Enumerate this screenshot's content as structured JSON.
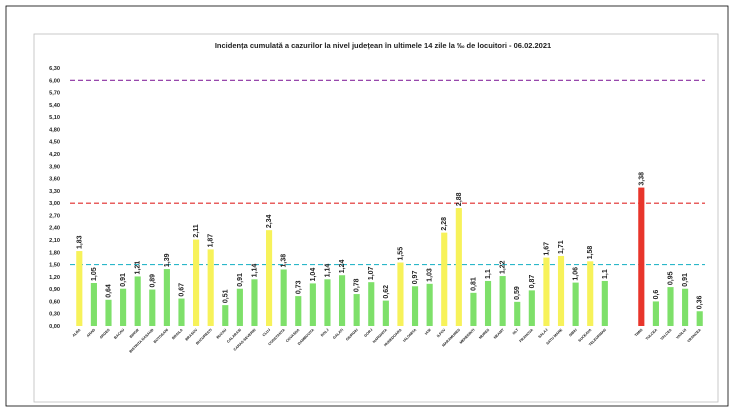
{
  "chart_data": {
    "type": "bar",
    "title": "Incidența cumulată a cazurilor la nivel județean în ultimele 14 zile la ‰ de locuitori - 06.02.2021",
    "xlabel": "",
    "ylabel": "",
    "ylim": [
      0,
      6.3
    ],
    "yticks": [
      "0,00",
      "0,30",
      "0,60",
      "0,90",
      "1,20",
      "1,50",
      "1,80",
      "2,10",
      "2,40",
      "2,70",
      "3,00",
      "3,30",
      "3,60",
      "3,90",
      "4,20",
      "4,50",
      "4,80",
      "5,10",
      "5,40",
      "5,70",
      "6,00",
      "6,30"
    ],
    "grid": false,
    "categories": [
      "ALBA",
      "ARAD",
      "ARGES",
      "BACAU",
      "BIHOR",
      "BISTRITA NASAUD",
      "BOTOSANI",
      "BRAILA",
      "BRASOV",
      "BUCURESTI",
      "BUZAU",
      "CALARASI",
      "CARAS-SEVERIN",
      "CLUJ",
      "CONSTANTA",
      "COVASNA",
      "DAMBOVITA",
      "DOLJ",
      "GALATI",
      "GIURGIU",
      "GORJ",
      "HARGHITA",
      "HUNEDOARA",
      "IALOMITA",
      "IASI",
      "ILFOV",
      "MARAMURES",
      "MEHEDINTI",
      "MURES",
      "NEAMT",
      "OLT",
      "PRAHOVA",
      "SALAJ",
      "SATU MARE",
      "SIBIU",
      "SUCEAVA",
      "TELEORMAN",
      "TIMIS",
      "TULCEA",
      "VALCEA",
      "VASLUI",
      "VRANCEA"
    ],
    "values": [
      1.83,
      1.05,
      0.64,
      0.91,
      1.21,
      0.89,
      1.39,
      0.67,
      2.11,
      1.87,
      0.51,
      0.91,
      1.14,
      2.34,
      1.38,
      0.73,
      1.04,
      1.14,
      1.24,
      0.78,
      1.07,
      0.62,
      1.55,
      0.97,
      1.03,
      2.28,
      2.88,
      0.81,
      1.1,
      1.22,
      0.59,
      0.87,
      1.67,
      1.71,
      1.06,
      1.58,
      1.1,
      3.38,
      0.6,
      0.95,
      0.91,
      0.36
    ],
    "value_labels": [
      "1,83",
      "1,05",
      "0,64",
      "0,91",
      "1,21",
      "0,89",
      "1,39",
      "0,67",
      "2,11",
      "1,87",
      "0,51",
      "0,91",
      "1,14",
      "2,34",
      "1,38",
      "0,73",
      "1,04",
      "1,14",
      "1,24",
      "0,78",
      "1,07",
      "0,62",
      "1,55",
      "0,97",
      "1,03",
      "2,28",
      "2,88",
      "0,81",
      "1,1",
      "1,22",
      "0,59",
      "0,87",
      "1,67",
      "1,71",
      "1,06",
      "1,58",
      "1,1",
      "3,38",
      "0,6",
      "0,95",
      "0,91",
      "0,36"
    ],
    "categories_after_gap_start": 37,
    "colors": {
      "green": "#7ee06a",
      "yellow": "#f7f25a",
      "red": "#e8352b",
      "line_purple": "#8a2fa0",
      "line_red": "#e02a2a",
      "line_cyan": "#2bb7c9"
    },
    "thresholds": [
      {
        "value": 6.0,
        "color_key": "line_purple"
      },
      {
        "value": 3.0,
        "color_key": "line_red"
      },
      {
        "value": 1.5,
        "color_key": "line_cyan"
      }
    ]
  }
}
